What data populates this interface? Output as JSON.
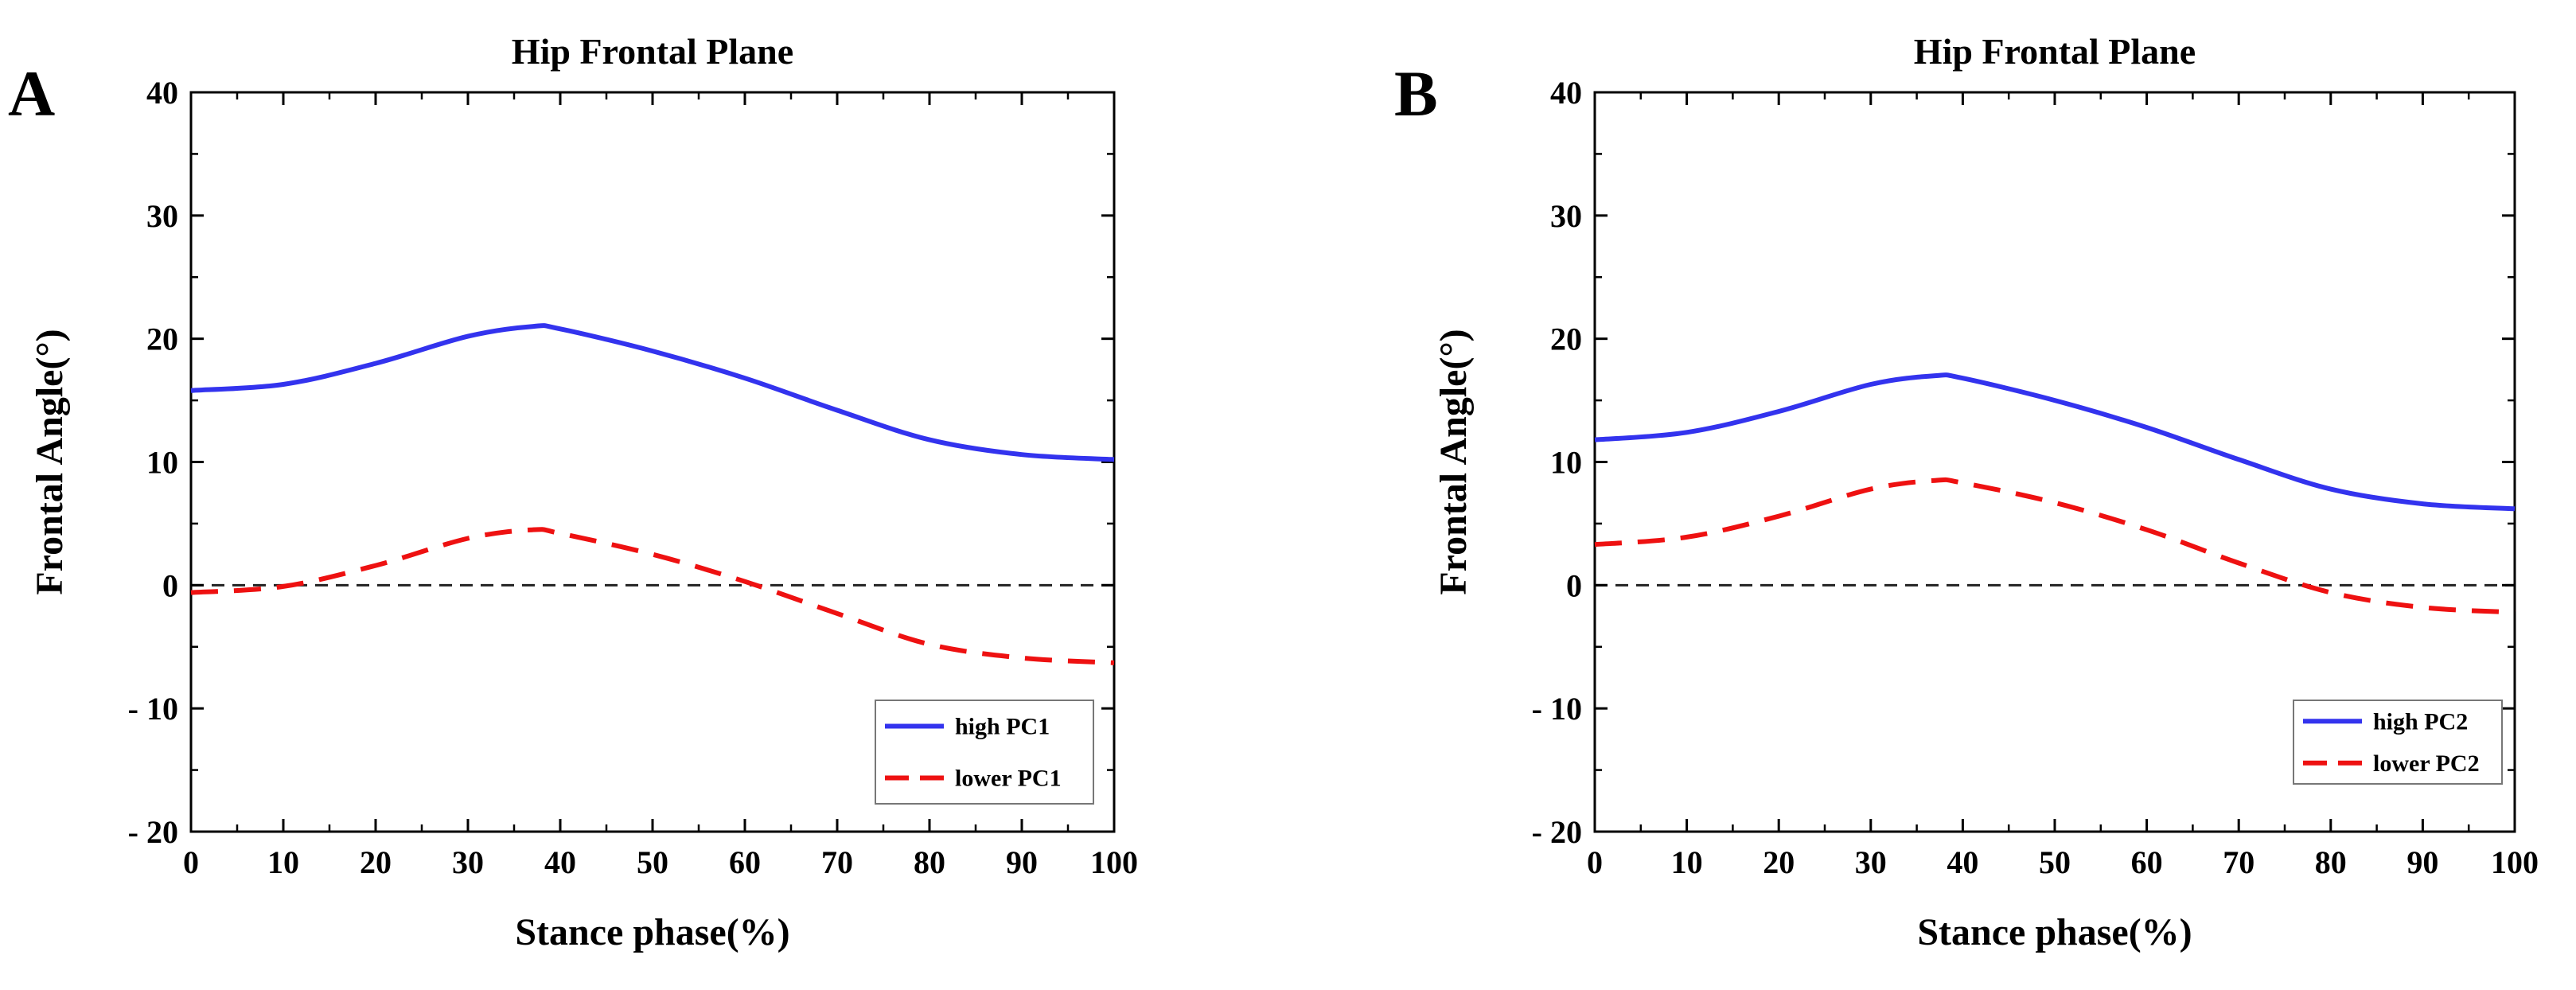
{
  "chart_data": [
    {
      "panel": "A",
      "type": "line",
      "title": "Hip Frontal Plane",
      "xlabel": "Stance phase(%)",
      "ylabel": "Frontal Angle(°)",
      "xlim": [
        0,
        100
      ],
      "ylim": [
        -20,
        40
      ],
      "xticks": [
        0,
        10,
        20,
        30,
        40,
        50,
        60,
        70,
        80,
        90,
        100
      ],
      "yticks": [
        -20,
        -10,
        0,
        10,
        20,
        30,
        40
      ],
      "xtick_labels": [
        "0",
        "10",
        "20",
        "30",
        "40",
        "50",
        "60",
        "70",
        "80",
        "90",
        "100"
      ],
      "ytick_labels": [
        "- 20",
        "- 10",
        "0",
        "10",
        "20",
        "30",
        "40"
      ],
      "reference_line": 0,
      "legend_position": "bottom-right",
      "series": [
        {
          "name": "high PC1",
          "color": "#3333ee",
          "style": "solid",
          "x": [
            0,
            10,
            20,
            30,
            37,
            40,
            50,
            60,
            70,
            80,
            90,
            100
          ],
          "y": [
            15.8,
            16.3,
            18.0,
            20.2,
            21.0,
            20.8,
            19.0,
            16.8,
            14.2,
            11.8,
            10.6,
            10.2
          ]
        },
        {
          "name": "lower PC1",
          "color": "#ee1111",
          "style": "dashed",
          "x": [
            0,
            10,
            20,
            30,
            37,
            40,
            50,
            60,
            70,
            80,
            90,
            100
          ],
          "y": [
            -0.6,
            -0.1,
            1.6,
            3.8,
            4.5,
            4.2,
            2.5,
            0.3,
            -2.3,
            -4.8,
            -5.9,
            -6.3
          ]
        }
      ]
    },
    {
      "panel": "B",
      "type": "line",
      "title": "Hip Frontal Plane",
      "xlabel": "Stance phase(%)",
      "ylabel": "Frontal Angle(°)",
      "xlim": [
        0,
        100
      ],
      "ylim": [
        -20,
        40
      ],
      "xticks": [
        0,
        10,
        20,
        30,
        40,
        50,
        60,
        70,
        80,
        90,
        100
      ],
      "yticks": [
        -20,
        -10,
        0,
        10,
        20,
        30,
        40
      ],
      "xtick_labels": [
        "0",
        "10",
        "20",
        "30",
        "40",
        "50",
        "60",
        "70",
        "80",
        "90",
        "100"
      ],
      "ytick_labels": [
        "- 20",
        "- 10",
        "0",
        "10",
        "20",
        "30",
        "40"
      ],
      "reference_line": 0,
      "legend_position": "bottom-right",
      "series": [
        {
          "name": "high PC2",
          "color": "#3333ee",
          "style": "solid",
          "x": [
            0,
            10,
            20,
            30,
            37,
            40,
            50,
            60,
            70,
            80,
            90,
            100
          ],
          "y": [
            11.8,
            12.4,
            14.1,
            16.3,
            17.0,
            16.8,
            15.0,
            12.8,
            10.2,
            7.8,
            6.6,
            6.2
          ]
        },
        {
          "name": "lower PC2",
          "color": "#ee1111",
          "style": "dashed",
          "x": [
            0,
            10,
            20,
            30,
            37,
            40,
            50,
            60,
            70,
            80,
            90,
            100
          ],
          "y": [
            3.3,
            3.9,
            5.6,
            7.8,
            8.5,
            8.3,
            6.7,
            4.5,
            1.8,
            -0.6,
            -1.8,
            -2.2
          ]
        }
      ]
    }
  ]
}
